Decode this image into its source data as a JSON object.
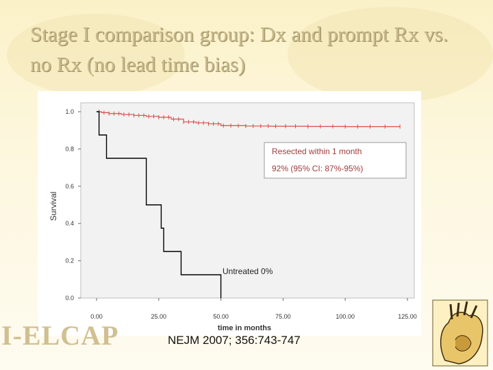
{
  "slide": {
    "title": "Stage I comparison group: Dx and prompt Rx vs. no Rx (no lead time bias)",
    "citation": "NEJM 2007; 356:743-747",
    "logo_text": "I-ELCAP"
  },
  "colors": {
    "title": "#c7b98b",
    "resected_series": "#d94c4c",
    "untreated_series": "#000000",
    "plot_background": "#f2f2f2",
    "background": "#fdf6d8"
  },
  "chart_data": {
    "type": "line",
    "title": "",
    "xlabel": "time in months",
    "ylabel": "Survival",
    "xlim": [
      0,
      125
    ],
    "ylim": [
      0,
      1.0
    ],
    "x_ticks": [
      "0.00",
      "25.00",
      "50.00",
      "75.00",
      "100.00",
      "125.00"
    ],
    "y_ticks": [
      "0.0",
      "0.2",
      "0.4",
      "0.6",
      "0.8",
      "1.0"
    ],
    "grid": false,
    "series": [
      {
        "name": "Resected within 1 month",
        "step": true,
        "censor_marks": true,
        "points": [
          [
            0,
            1.0
          ],
          [
            2,
            0.995
          ],
          [
            5,
            0.99
          ],
          [
            10,
            0.985
          ],
          [
            15,
            0.98
          ],
          [
            20,
            0.975
          ],
          [
            25,
            0.97
          ],
          [
            30,
            0.96
          ],
          [
            35,
            0.945
          ],
          [
            40,
            0.94
          ],
          [
            45,
            0.935
          ],
          [
            50,
            0.925
          ],
          [
            60,
            0.923
          ],
          [
            70,
            0.922
          ],
          [
            85,
            0.921
          ],
          [
            100,
            0.92
          ],
          [
            115,
            0.92
          ],
          [
            122,
            0.92
          ]
        ],
        "censored_x": [
          1,
          3,
          5,
          7,
          9,
          11,
          13,
          15,
          17,
          19,
          21,
          23,
          25,
          27,
          29,
          31,
          33,
          35,
          37,
          39,
          41,
          43,
          45,
          47,
          49,
          51,
          54,
          57,
          60,
          63,
          66,
          69,
          72,
          76,
          80,
          85,
          90,
          95,
          100,
          105,
          110,
          116,
          122
        ]
      },
      {
        "name": "Untreated",
        "step": true,
        "censor_marks": false,
        "points": [
          [
            0,
            1.0
          ],
          [
            1,
            0.875
          ],
          [
            4,
            0.75
          ],
          [
            20,
            0.5
          ],
          [
            26,
            0.375
          ],
          [
            27,
            0.25
          ],
          [
            34,
            0.125
          ],
          [
            50,
            0.0
          ]
        ]
      }
    ],
    "annotations": [
      {
        "text": "Resected within 1 month",
        "boxed": true
      },
      {
        "text": "92% (95% CI: 87%-95%)",
        "boxed": true
      },
      {
        "text": "Untreated  0%",
        "boxed": false
      }
    ]
  }
}
